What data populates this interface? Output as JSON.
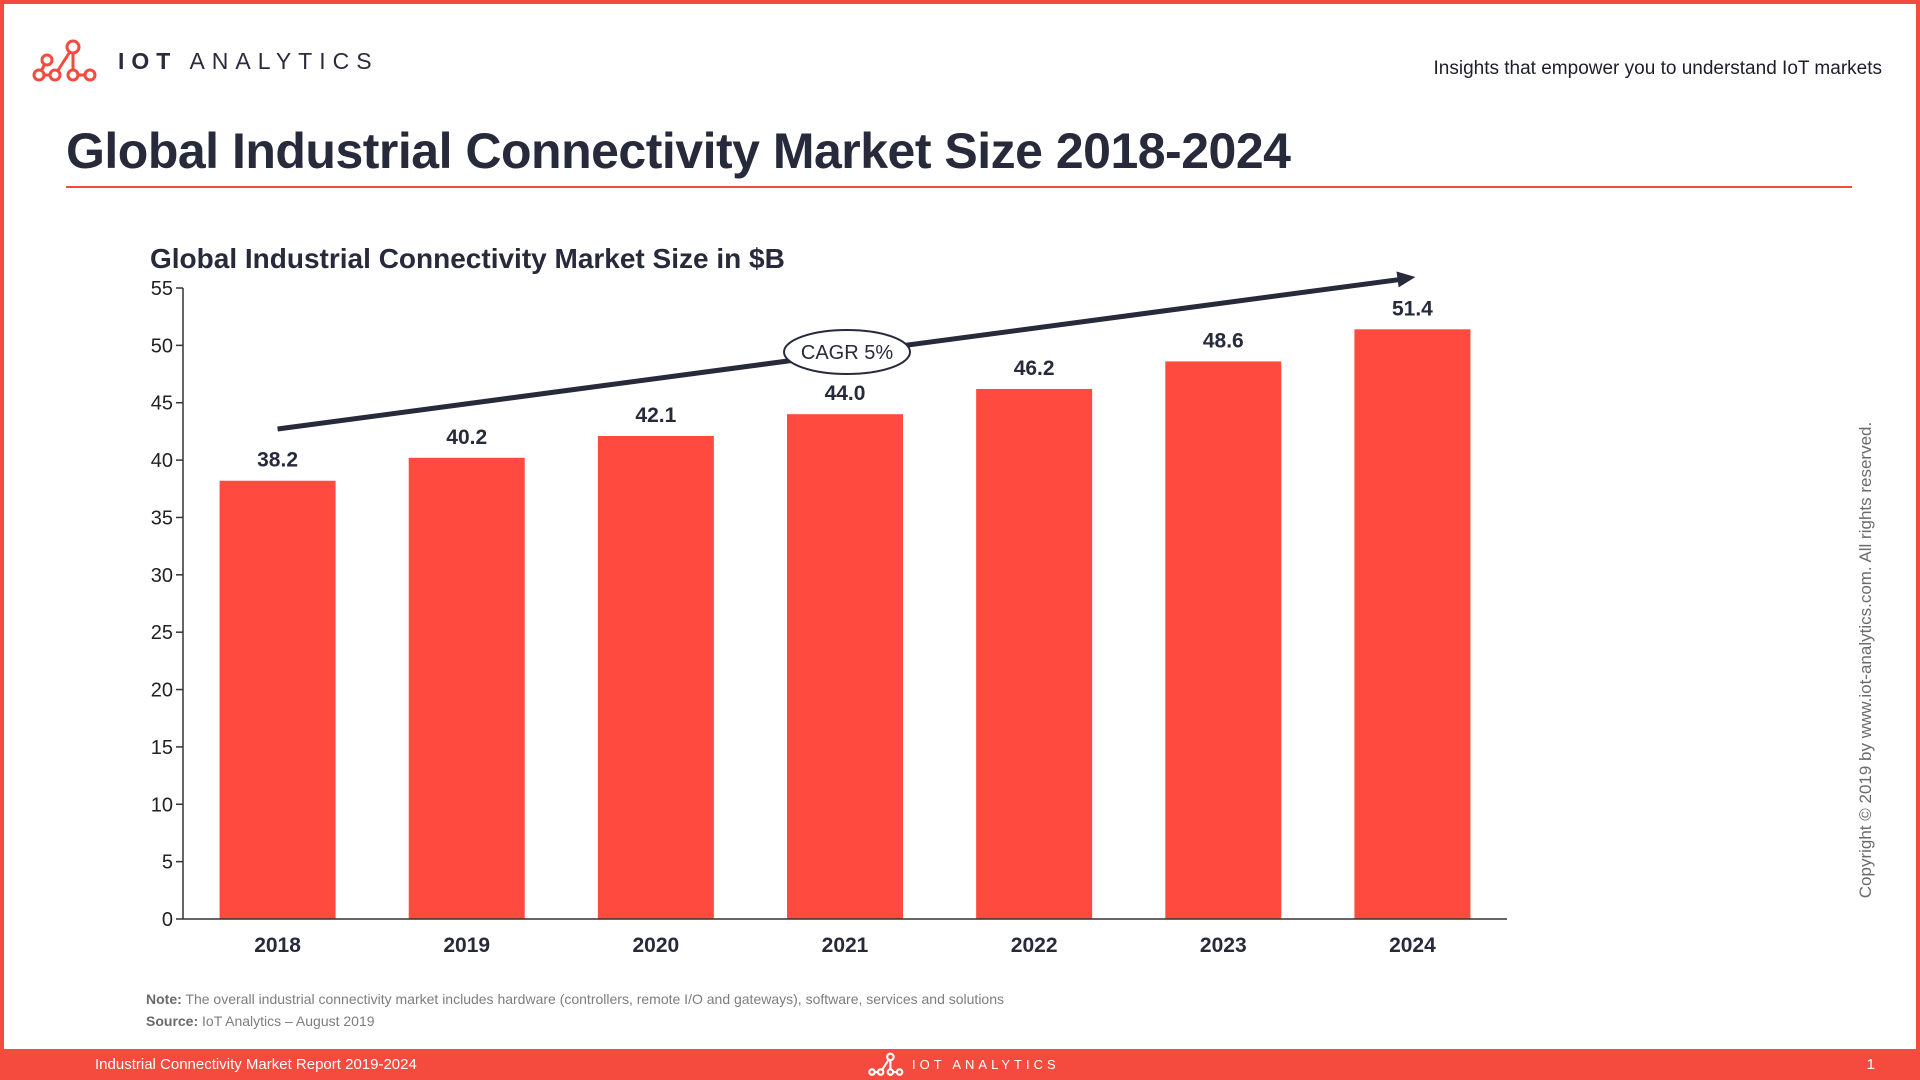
{
  "brand": {
    "name_bold": "IOT",
    "name_light": "ANALYTICS",
    "tagline": "Insights that empower you to understand IoT markets",
    "accent": "#f54a3e"
  },
  "page": {
    "title": "Global Industrial Connectivity Market Size 2018-2024"
  },
  "chart_data": {
    "type": "bar",
    "title": "Global Industrial Connectivity Market Size in $B",
    "categories": [
      "2018",
      "2019",
      "2020",
      "2021",
      "2022",
      "2023",
      "2024"
    ],
    "values": [
      38.2,
      40.2,
      42.1,
      44.0,
      46.2,
      48.6,
      51.4
    ],
    "value_labels": [
      "38.2",
      "40.2",
      "42.1",
      "44.0",
      "46.2",
      "48.6",
      "51.4"
    ],
    "yticks": [
      "0",
      "5",
      "10",
      "15",
      "20",
      "25",
      "30",
      "35",
      "40",
      "45",
      "50",
      "55"
    ],
    "ylim": [
      0,
      55
    ],
    "xlabel": "",
    "ylabel": "",
    "grid": false,
    "bar_color": "#ff4a3f",
    "annotation": {
      "text": "CAGR 5%",
      "type": "trend-arrow"
    }
  },
  "notes": {
    "note_label": "Note:",
    "note_text": " The overall industrial connectivity market includes hardware (controllers, remote I/O and gateways), software, services and solutions",
    "source_label": "Source:",
    "source_text": " IoT Analytics – August 2019"
  },
  "copyright": "Copyright © 2019 by www.iot-analytics.com. All rights reserved.",
  "footer": {
    "report": "Industrial Connectivity Market Report 2019-2024",
    "brand_bold": "IOT",
    "brand_light": "ANALYTICS",
    "page_number": "1"
  }
}
